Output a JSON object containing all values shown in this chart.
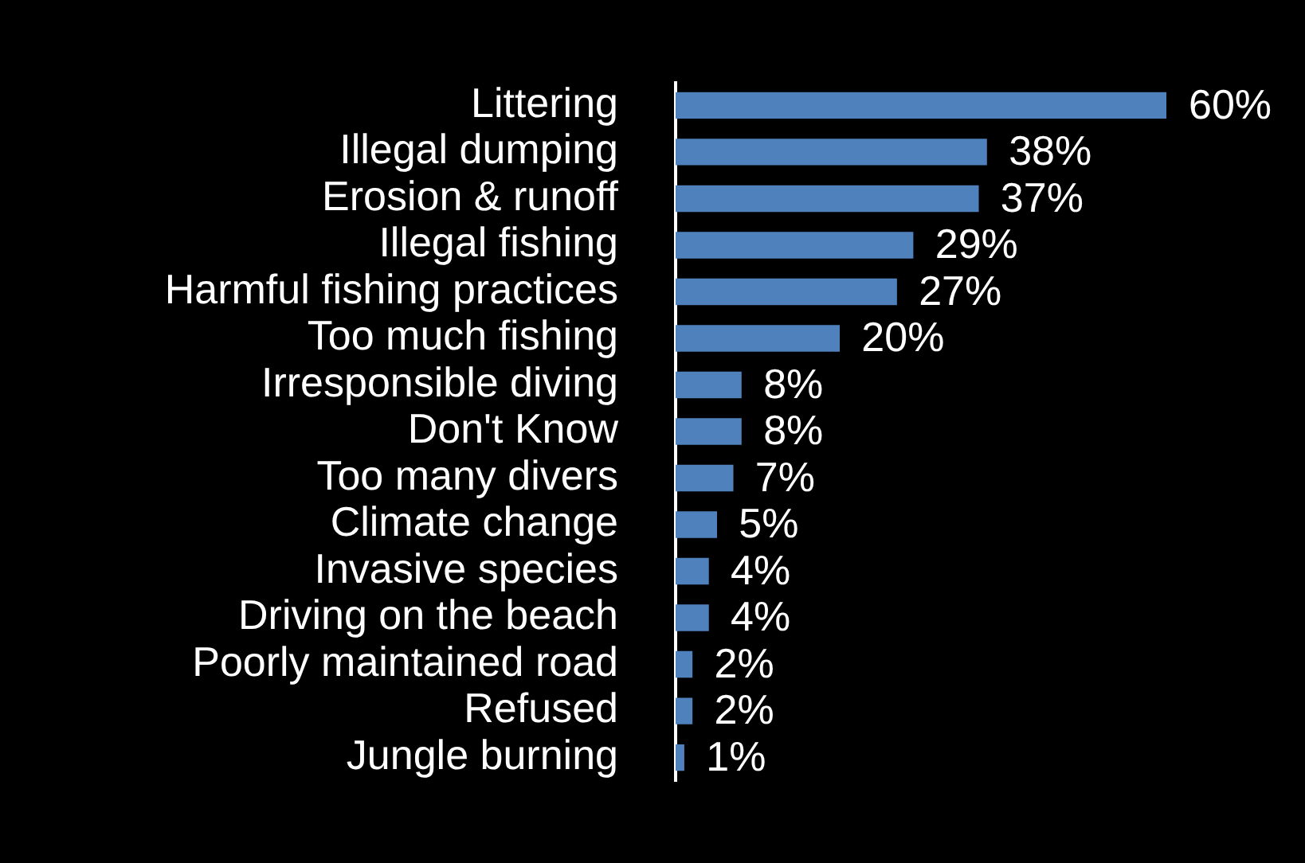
{
  "chart_data": {
    "type": "bar",
    "orientation": "horizontal",
    "categories": [
      "Littering",
      "Illegal dumping",
      "Erosion & runoff",
      "Illegal fishing",
      "Harmful fishing practices",
      "Too much fishing",
      "Irresponsible diving",
      "Don't Know",
      "Too many divers",
      "Climate change",
      "Invasive species",
      "Driving on the beach",
      "Poorly maintained road",
      "Refused",
      "Jungle burning"
    ],
    "values": [
      60,
      38,
      37,
      29,
      27,
      20,
      8,
      8,
      7,
      5,
      4,
      4,
      2,
      2,
      1
    ],
    "value_labels": [
      "60%",
      "38%",
      "37%",
      "29%",
      "27%",
      "20%",
      "8%",
      "8%",
      "7%",
      "5%",
      "4%",
      "4%",
      "2%",
      "2%",
      "1%"
    ],
    "color": "#4f81bd"
  }
}
